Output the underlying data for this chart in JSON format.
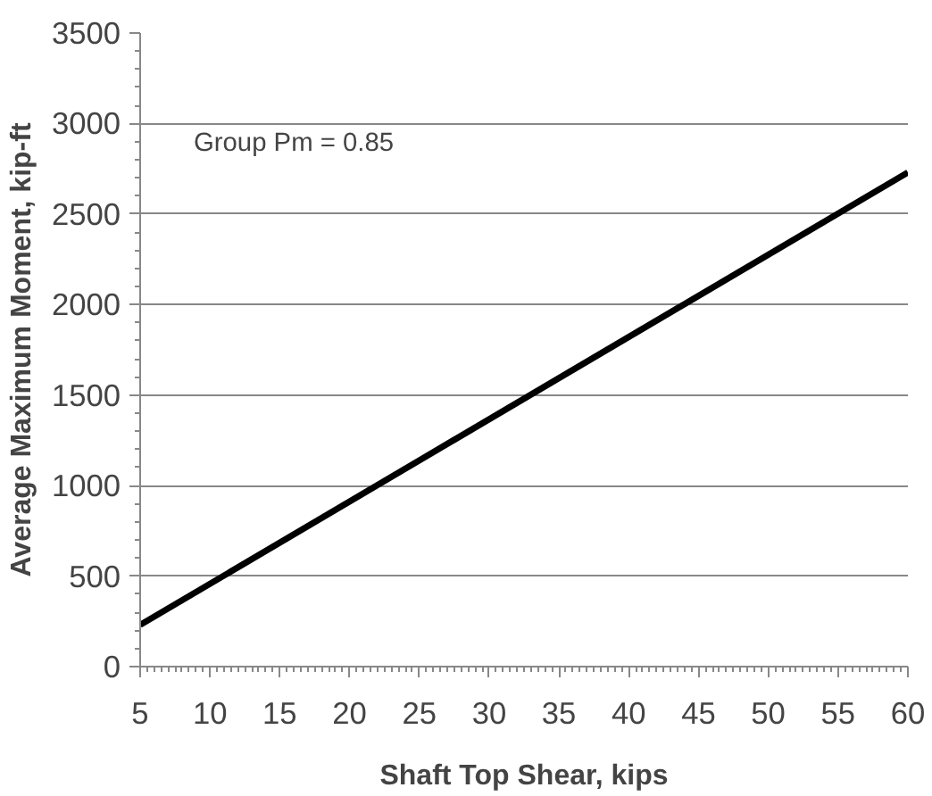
{
  "chart_data": {
    "type": "line",
    "xlabel": "Shaft Top Shear, kips",
    "ylabel": "Average Maximum Moment, kip-ft",
    "annotations": [
      "Group Pm = 0.85"
    ],
    "x": [
      5,
      60
    ],
    "series": [
      {
        "color": "#000000",
        "values": [
          230,
          2730
        ]
      }
    ],
    "xlim": [
      5,
      60
    ],
    "xticks": [
      5,
      10,
      15,
      20,
      25,
      30,
      35,
      40,
      45,
      50,
      55,
      60
    ],
    "ylim": [
      0,
      3500
    ],
    "yticks": [
      0,
      500,
      1000,
      1500,
      2000,
      2500,
      3000,
      3500
    ],
    "grid": "y",
    "marker": "none",
    "line_style": "solid"
  }
}
